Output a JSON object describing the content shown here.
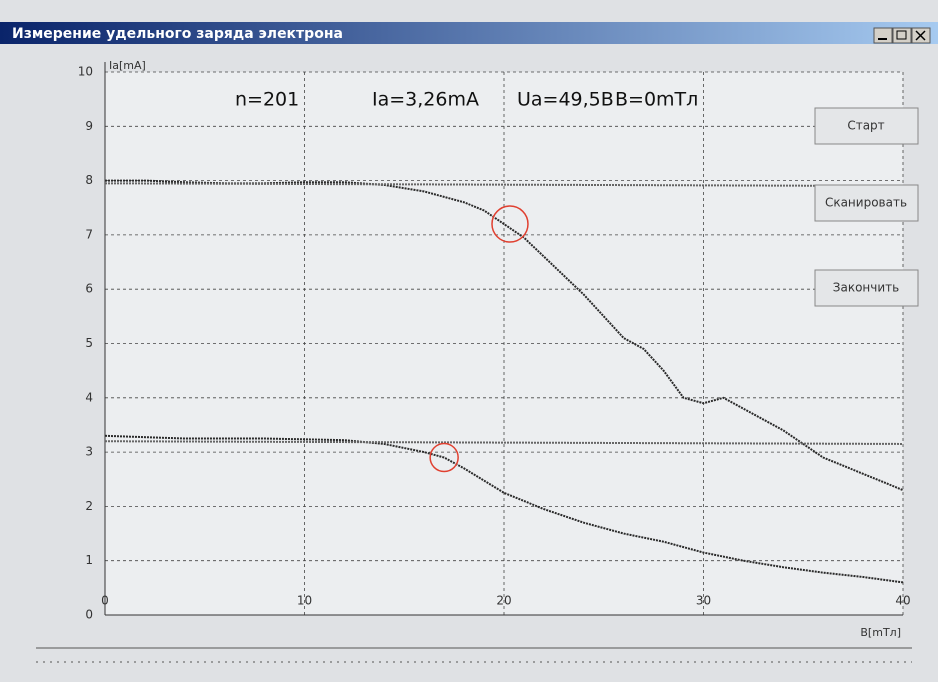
{
  "window": {
    "title": "Измерение удельного заряда электрона"
  },
  "buttons": [
    "Старт",
    "Сканировать",
    "Закончить"
  ],
  "chart_data": {
    "type": "line",
    "annotations": [
      "n=201",
      "Ia=3,26mA",
      "Ua=49,5B",
      "B=0mTл"
    ],
    "x_label": "B[mTл]",
    "y_label": "Ia[mA]",
    "xlim": [
      0,
      40
    ],
    "xticks": [
      0,
      10,
      20,
      30,
      40
    ],
    "ylim": [
      0,
      10
    ],
    "yticks": [
      0,
      1,
      2,
      3,
      4,
      5,
      6,
      7,
      8,
      9,
      10
    ],
    "grid": true,
    "series": [
      {
        "color": "#2a2a2a",
        "x": [
          0,
          2,
          4,
          6,
          8,
          10,
          12,
          14,
          16,
          18,
          19,
          20,
          21,
          22,
          24,
          26,
          27,
          28,
          29,
          30,
          31,
          32,
          34,
          36,
          38,
          40
        ],
        "values": [
          8.0,
          8.0,
          7.97,
          7.95,
          7.95,
          7.97,
          7.97,
          7.92,
          7.8,
          7.6,
          7.45,
          7.2,
          6.95,
          6.6,
          5.9,
          5.1,
          4.9,
          4.5,
          4.0,
          3.9,
          4.0,
          3.8,
          3.4,
          2.9,
          2.6,
          2.3
        ]
      },
      {
        "color": "#2a2a2a",
        "x": [
          0,
          4,
          8,
          12,
          14,
          16,
          17,
          18,
          20,
          22,
          24,
          26,
          28,
          30,
          32,
          34,
          36,
          38,
          40
        ],
        "values": [
          3.3,
          3.25,
          3.25,
          3.22,
          3.15,
          3.0,
          2.9,
          2.7,
          2.25,
          1.95,
          1.7,
          1.5,
          1.35,
          1.15,
          1.0,
          0.88,
          0.78,
          0.7,
          0.6
        ]
      },
      {
        "color": "#666666",
        "x": [
          0,
          40
        ],
        "values": [
          7.95,
          7.9
        ]
      },
      {
        "color": "#666666",
        "x": [
          0,
          40
        ],
        "values": [
          3.2,
          3.15
        ]
      }
    ],
    "highlights": [
      {
        "x": 20.3,
        "y": 7.2,
        "color": "#e04030"
      },
      {
        "x": 17,
        "y": 2.9,
        "color": "#e04030"
      }
    ]
  }
}
